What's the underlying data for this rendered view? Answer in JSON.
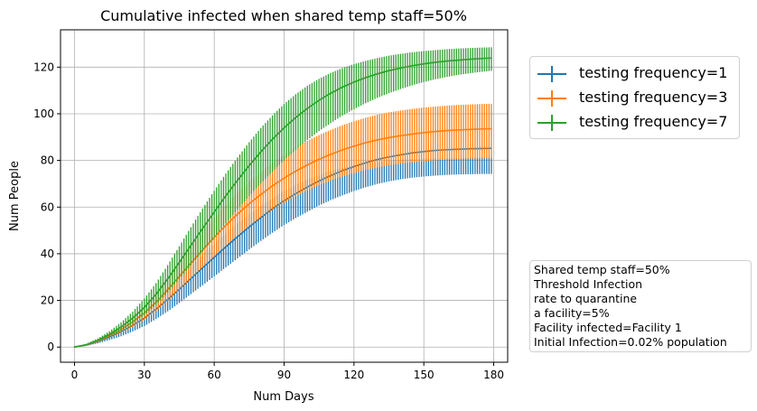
{
  "chart_data": {
    "type": "line",
    "title": "Cumulative infected when shared temp staff=50%",
    "xlabel": "Num Days",
    "ylabel": "Num People",
    "xlim": [
      -6,
      186
    ],
    "ylim": [
      -6.5,
      136
    ],
    "xticks": [
      0,
      30,
      60,
      90,
      120,
      150,
      180
    ],
    "yticks": [
      0,
      20,
      40,
      60,
      80,
      100,
      120
    ],
    "grid": true,
    "legend_position": "upper-right outside plot",
    "error_bars": true,
    "series": [
      {
        "name": "testing frequency=1",
        "color": "#1f77b4",
        "x": [
          0,
          5,
          10,
          15,
          20,
          25,
          30,
          35,
          40,
          45,
          50,
          55,
          60,
          65,
          70,
          75,
          80,
          85,
          90,
          95,
          100,
          105,
          110,
          115,
          120,
          125,
          130,
          135,
          140,
          145,
          150,
          155,
          160,
          165,
          170,
          175,
          179
        ],
        "mean": [
          0,
          0.8,
          2.3,
          4.3,
          6.6,
          9.3,
          12.4,
          16.2,
          20.4,
          24.8,
          29.4,
          34.0,
          38.5,
          43.0,
          47.3,
          51.5,
          55.5,
          59.3,
          62.7,
          65.8,
          68.6,
          71.2,
          73.5,
          75.6,
          77.4,
          79.0,
          80.4,
          81.5,
          82.4,
          83.2,
          83.8,
          84.3,
          84.6,
          84.8,
          85.0,
          85.1,
          85.2
        ],
        "lower": [
          0,
          0.5,
          1.6,
          3.0,
          4.6,
          6.7,
          9.0,
          12.0,
          15.3,
          18.9,
          22.7,
          26.5,
          30.3,
          34.2,
          38.0,
          41.8,
          45.5,
          49.0,
          52.3,
          55.3,
          58.0,
          60.7,
          63.0,
          65.0,
          66.9,
          68.5,
          69.9,
          71.0,
          71.9,
          72.6,
          73.1,
          73.5,
          73.8,
          74.0,
          74.1,
          74.2,
          74.2
        ],
        "upper": [
          0,
          1.0,
          2.8,
          5.2,
          7.9,
          11.1,
          14.8,
          19.3,
          24.3,
          29.3,
          34.5,
          39.5,
          44.3,
          48.8,
          53.0,
          56.8,
          60.4,
          63.8,
          66.8,
          69.5,
          71.8,
          73.7,
          75.5,
          76.8,
          77.9,
          78.7,
          79.4,
          79.9,
          80.3,
          80.6,
          80.8,
          80.9,
          81.0,
          81.1,
          81.1,
          81.2,
          81.2
        ]
      },
      {
        "name": "testing frequency=3",
        "color": "#ff7f0e",
        "x": [
          0,
          5,
          10,
          15,
          20,
          25,
          30,
          35,
          40,
          45,
          50,
          55,
          60,
          65,
          70,
          75,
          80,
          85,
          90,
          95,
          100,
          105,
          110,
          115,
          120,
          125,
          130,
          135,
          140,
          145,
          150,
          155,
          160,
          165,
          170,
          175,
          179
        ],
        "mean": [
          0,
          0.9,
          2.6,
          4.9,
          7.6,
          10.8,
          14.6,
          19.2,
          24.6,
          30.3,
          36.0,
          41.6,
          47.0,
          52.2,
          57.0,
          61.4,
          65.4,
          69.1,
          72.4,
          75.4,
          78.1,
          80.5,
          82.6,
          84.5,
          86.1,
          87.6,
          88.8,
          89.8,
          90.6,
          91.3,
          91.9,
          92.4,
          92.8,
          93.1,
          93.3,
          93.5,
          93.6
        ],
        "lower": [
          0,
          0.6,
          2.0,
          3.9,
          6.1,
          8.6,
          11.6,
          15.3,
          19.7,
          24.4,
          29.3,
          34.1,
          38.9,
          43.5,
          47.8,
          51.8,
          55.5,
          58.9,
          61.9,
          64.7,
          67.2,
          69.4,
          71.4,
          73.1,
          74.6,
          75.9,
          77.0,
          77.9,
          78.6,
          79.2,
          79.7,
          80.1,
          80.4,
          80.6,
          80.8,
          80.9,
          81.0
        ],
        "upper": [
          0,
          1.2,
          3.3,
          6.0,
          9.2,
          13.1,
          17.8,
          23.4,
          29.8,
          36.4,
          43.0,
          49.3,
          55.3,
          60.9,
          66.0,
          70.7,
          75.0,
          78.9,
          82.4,
          85.6,
          88.4,
          90.9,
          93.1,
          95.1,
          96.8,
          98.3,
          99.6,
          100.6,
          101.4,
          102.1,
          102.7,
          103.1,
          103.5,
          103.8,
          104.0,
          104.2,
          104.3
        ]
      },
      {
        "name": "testing frequency=7",
        "color": "#2ca02c",
        "x": [
          0,
          5,
          10,
          15,
          20,
          25,
          30,
          35,
          40,
          45,
          50,
          55,
          60,
          65,
          70,
          75,
          80,
          85,
          90,
          95,
          100,
          105,
          110,
          115,
          120,
          125,
          130,
          135,
          140,
          145,
          150,
          155,
          160,
          165,
          170,
          175,
          179
        ],
        "mean": [
          0,
          1.0,
          2.9,
          5.5,
          8.6,
          12.4,
          17.0,
          22.6,
          29.2,
          36.3,
          43.6,
          50.8,
          57.9,
          64.9,
          71.5,
          77.8,
          83.7,
          89.1,
          94.0,
          98.4,
          102.3,
          105.8,
          108.8,
          111.4,
          113.6,
          115.5,
          117.1,
          118.5,
          119.6,
          120.6,
          121.4,
          122.1,
          122.6,
          123.0,
          123.4,
          123.7,
          123.9
        ],
        "lower": [
          0,
          0.7,
          2.2,
          4.3,
          6.9,
          9.9,
          13.6,
          18.1,
          23.3,
          29.0,
          34.9,
          41.0,
          47.0,
          53.1,
          59.0,
          64.7,
          70.1,
          75.2,
          80.0,
          84.6,
          88.8,
          92.6,
          96.0,
          99.2,
          102.0,
          104.5,
          106.8,
          108.8,
          110.6,
          112.2,
          113.6,
          114.8,
          115.8,
          116.7,
          117.4,
          118.0,
          118.4
        ],
        "upper": [
          0,
          1.4,
          3.7,
          6.8,
          10.6,
          15.2,
          20.8,
          27.4,
          35.1,
          43.2,
          51.4,
          59.4,
          67.0,
          74.4,
          81.3,
          87.8,
          93.9,
          99.3,
          104.2,
          108.4,
          112.0,
          115.0,
          117.5,
          119.6,
          121.3,
          122.7,
          123.9,
          124.9,
          125.7,
          126.4,
          126.9,
          127.3,
          127.7,
          128.0,
          128.2,
          128.4,
          128.5
        ]
      }
    ]
  },
  "info_box": {
    "lines": [
      "Shared temp staff=50%",
      "Threshold Infection",
      "rate to quarantine",
      "a facility=5%",
      "Facility infected=Facility 1",
      "Initial Infection=0.02% population"
    ]
  }
}
